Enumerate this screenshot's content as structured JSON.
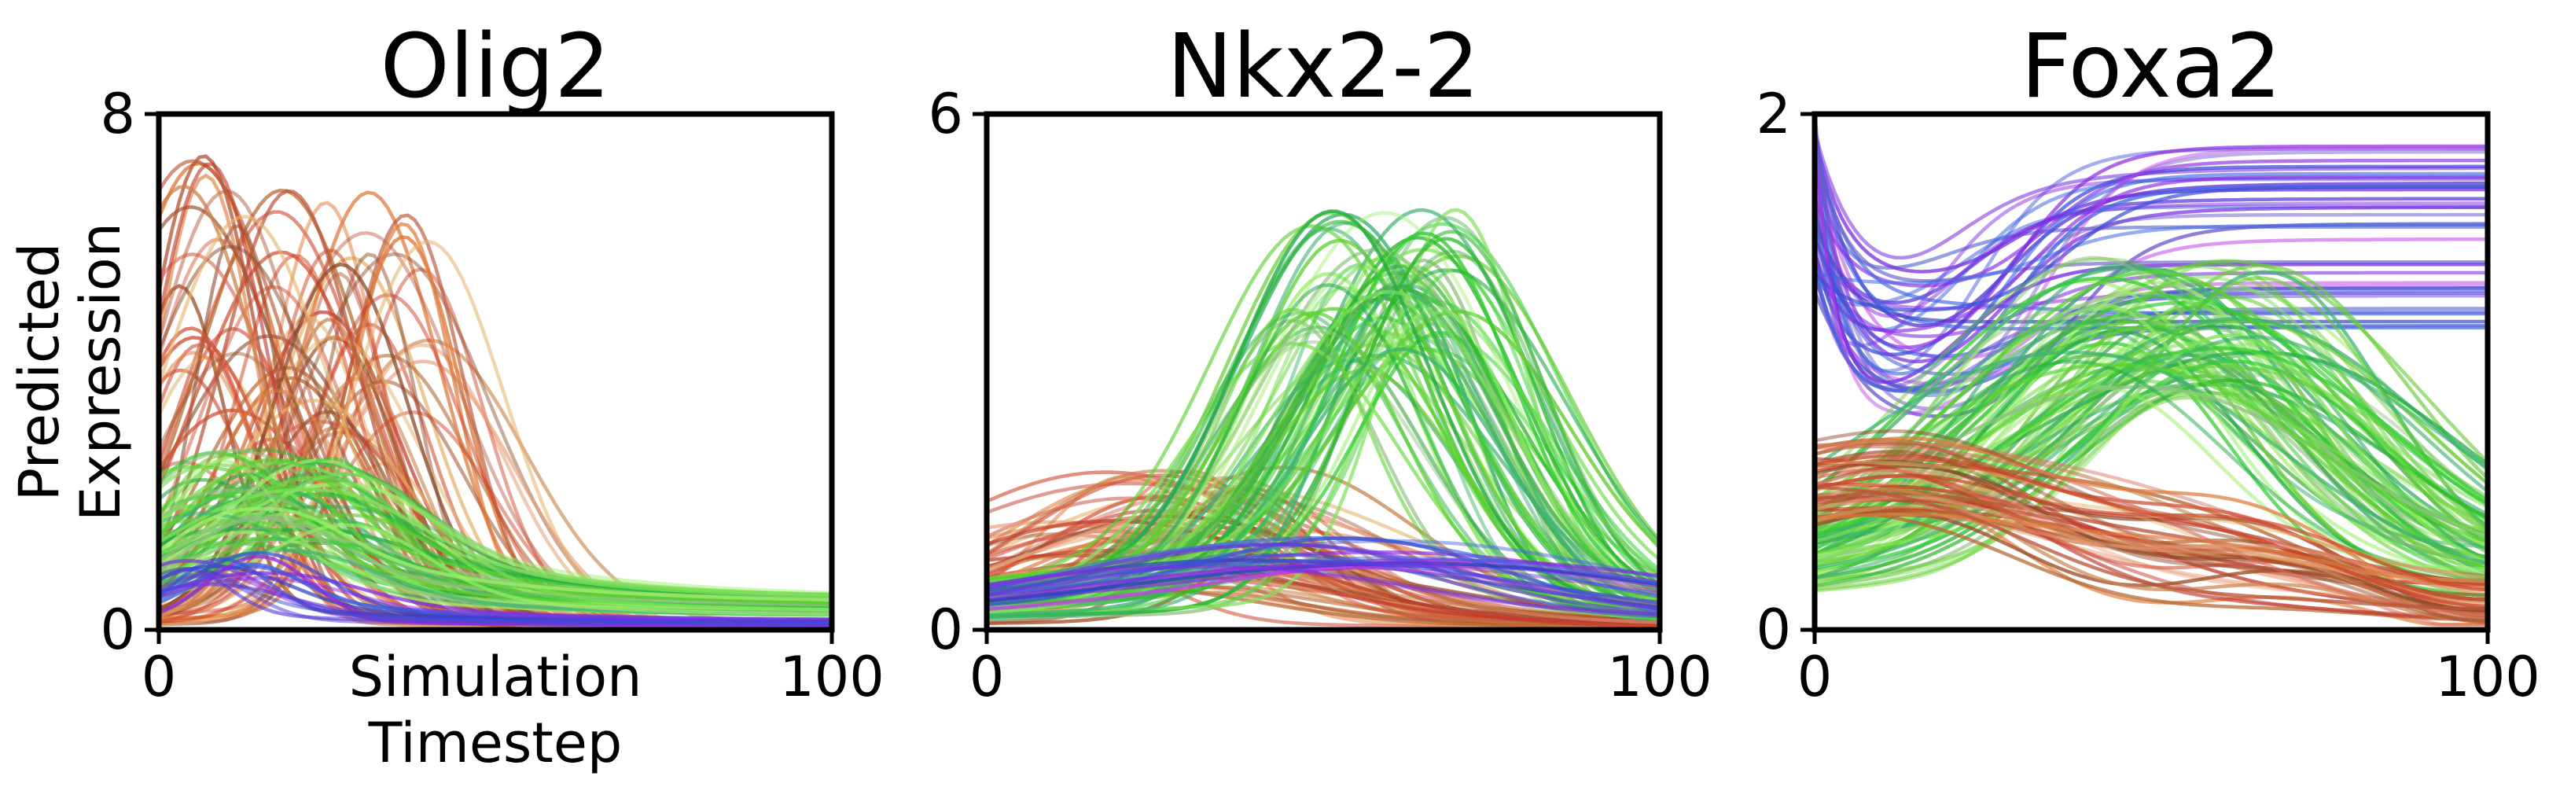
{
  "chart_data": [
    {
      "type": "line",
      "title": "Olig2",
      "ylabel": "Predicted Expression",
      "ylabel_lines": [
        "Predicted",
        "Expression"
      ],
      "xlabel": "Simulation Timestep",
      "xlabel_lines": [
        "Simulation",
        "Timestep"
      ],
      "xlim": [
        0,
        100
      ],
      "ylim": [
        0,
        8
      ],
      "xticks": [
        "0",
        "100"
      ],
      "yticks": [
        "0",
        "8"
      ],
      "grid": false,
      "legend": "none",
      "series": [
        {
          "group": "red",
          "count": 70,
          "peak_value_range": [
            2.5,
            7.4
          ],
          "peak_timestep_range": [
            3,
            42
          ],
          "width_range": [
            6,
            14
          ],
          "baseline_value_range": [
            0.1,
            0.5
          ]
        },
        {
          "group": "green",
          "count": 60,
          "peak_value_range": [
            1.2,
            2.8
          ],
          "peak_timestep_range": [
            5,
            28
          ],
          "width_range": [
            7,
            15
          ],
          "baseline_value_range": [
            0.8,
            2.0
          ]
        },
        {
          "group": "blue",
          "count": 14,
          "peak_value_range": [
            0.7,
            1.2
          ],
          "peak_timestep_range": [
            4,
            16
          ],
          "width_range": [
            5,
            12
          ],
          "baseline_value_range": [
            0.2,
            0.6
          ]
        }
      ]
    },
    {
      "type": "line",
      "title": "Nkx2-2",
      "ylabel": "",
      "xlabel": "",
      "xlim": [
        0,
        100
      ],
      "ylim": [
        0,
        6
      ],
      "xticks": [
        "0",
        "100"
      ],
      "yticks": [
        "0",
        "6"
      ],
      "grid": false,
      "legend": "none",
      "series": [
        {
          "group": "red",
          "count": 55,
          "peak_value_range": [
            0.4,
            1.9
          ],
          "peak_timestep_range": [
            10,
            45
          ],
          "width_range": [
            10,
            30
          ],
          "baseline_value_range": [
            0.1,
            0.5
          ]
        },
        {
          "group": "green",
          "count": 75,
          "peak_value_range": [
            3.0,
            4.9
          ],
          "peak_timestep_range": [
            45,
            70
          ],
          "width_range": [
            10,
            18
          ],
          "baseline_value_range": [
            0.2,
            1.0
          ]
        },
        {
          "group": "blue",
          "count": 20,
          "peak_value_range": [
            0.7,
            1.1
          ],
          "peak_timestep_range": [
            30,
            70
          ],
          "width_range": [
            20,
            40
          ],
          "baseline_value_range": [
            0.3,
            0.6
          ]
        }
      ]
    },
    {
      "type": "line",
      "title": "Foxa2",
      "ylabel": "",
      "xlabel": "",
      "xlim": [
        0,
        100
      ],
      "ylim": [
        0,
        2
      ],
      "xticks": [
        "0",
        "100"
      ],
      "yticks": [
        "0",
        "2"
      ],
      "grid": false,
      "legend": "none",
      "series": [
        {
          "group": "blue",
          "count": 40,
          "start_value_range": [
            1.3,
            2.0
          ],
          "dip_value_range": [
            0.75,
            1.35
          ],
          "dip_timestep_range": [
            6,
            15
          ],
          "plateau_value_range": [
            1.1,
            1.9
          ],
          "rise_timestep_range": [
            18,
            38
          ]
        },
        {
          "group": "green",
          "count": 80,
          "peak_value_range": [
            0.9,
            1.45
          ],
          "peak_timestep_range": [
            38,
            68
          ],
          "width_range": [
            15,
            28
          ],
          "baseline_value_range": [
            0.25,
            0.65
          ],
          "tail_value_range": [
            0.08,
            0.3
          ]
        },
        {
          "group": "red",
          "count": 45,
          "start_value_range": [
            0.4,
            0.75
          ],
          "end_value_range": [
            0.05,
            0.22
          ],
          "decay_timestep_range": [
            30,
            70
          ]
        }
      ]
    }
  ],
  "colors": {
    "red_palette": [
      "#c0392b",
      "#b5652f",
      "#a0522d",
      "#d2553b",
      "#e07b3c",
      "#c9824a",
      "#d96f5a",
      "#8b4a2b",
      "#e8a07a",
      "#cc4125",
      "#b8573a",
      "#e6b36b"
    ],
    "green_palette": [
      "#32cd32",
      "#3cb371",
      "#5bd12f",
      "#7fe05a",
      "#2eb82e",
      "#66cc33",
      "#9bef6b",
      "#4caf50",
      "#8fbf7f",
      "#22aa44"
    ],
    "blue_palette": [
      "#3b4fd8",
      "#5a3bd8",
      "#7b2fe0",
      "#4169e1",
      "#8a2be2",
      "#6a5acd",
      "#c040e8",
      "#2a3fc0"
    ],
    "axis": "#000000"
  }
}
